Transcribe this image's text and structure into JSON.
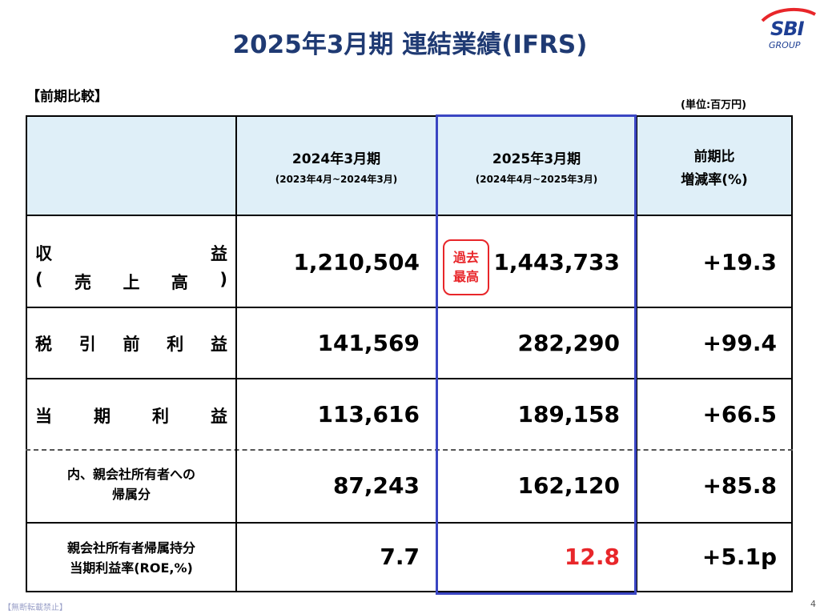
{
  "title": "2025年3月期 連結業績(IFRS)",
  "logo": {
    "name": "SBI",
    "sub": "GROUP"
  },
  "section_label": "【前期比較】",
  "unit": "(単位:百万円)",
  "columns": {
    "prev": {
      "label": "2024年3月期",
      "period": "(2023年4月~2024年3月)"
    },
    "curr": {
      "label": "2025年3月期",
      "period": "(2024年4月~2025年3月)"
    },
    "change": {
      "line1": "前期比",
      "line2": "増減率(%)"
    }
  },
  "badge": {
    "line1": "過去",
    "line2": "最高"
  },
  "rows": [
    {
      "label_chars": [
        "収",
        "益"
      ],
      "label2_chars": [
        "(",
        "売",
        "上",
        "高",
        ")"
      ],
      "prev": "1,210,504",
      "curr": "1,443,733",
      "change": "+19.3"
    },
    {
      "label_chars": [
        "税",
        "引",
        "前",
        "利",
        "益"
      ],
      "prev": "141,569",
      "curr": "282,290",
      "change": "+99.4"
    },
    {
      "label_chars": [
        "当",
        "期",
        "利",
        "益"
      ],
      "prev": "113,616",
      "curr": "189,158",
      "change": "+66.5"
    },
    {
      "label_line1": "内、親会社所有者への",
      "label_line2": "帰属分",
      "prev": "87,243",
      "curr": "162,120",
      "change": "+85.8"
    },
    {
      "label_line1": "親会社所有者帰属持分",
      "label_line2": "当期利益率(ROE,%)",
      "prev": "7.7",
      "curr": "12.8",
      "change": "+5.1p"
    }
  ],
  "colors": {
    "title": "#1f3a73",
    "header_bg": "#dfeff8",
    "highlight": "#3a45c2",
    "accent_red": "#e8262a"
  },
  "footer": {
    "note": "【無断転載禁止】",
    "page": "4"
  }
}
